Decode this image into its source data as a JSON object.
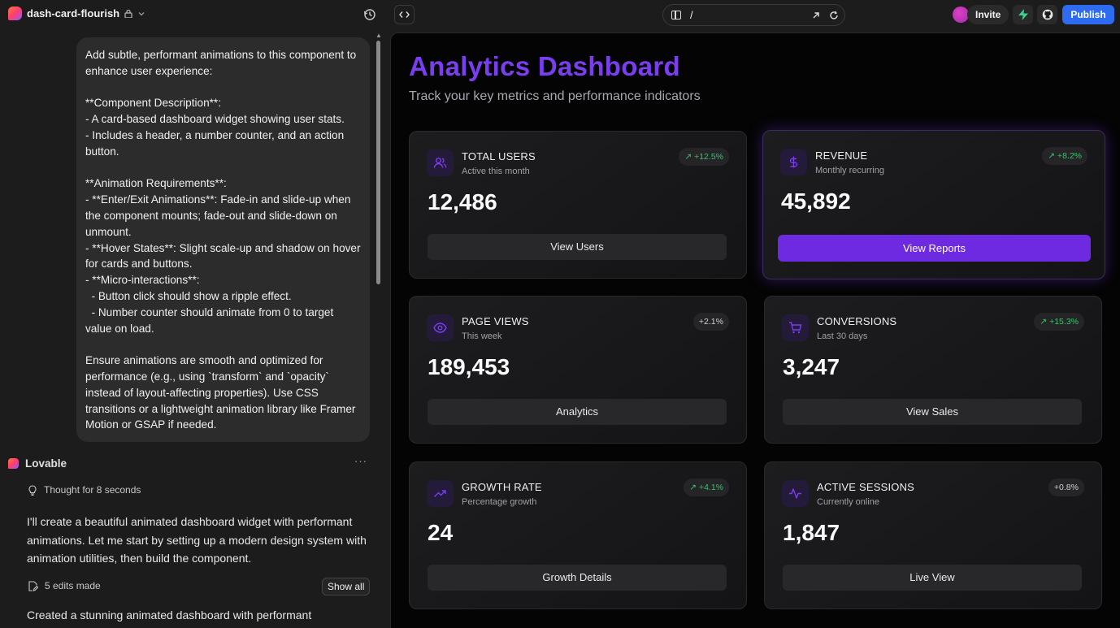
{
  "topbar": {
    "project_name": "dash-card-flourish",
    "url_path": "/",
    "invite_label": "Invite",
    "publish_label": "Publish"
  },
  "chat": {
    "user_message": "Add subtle, performant animations to this component to enhance user experience:\n\n**Component Description**:\n- A card-based dashboard widget showing user stats.\n- Includes a header, a number counter, and an action button.\n\n**Animation Requirements**:\n- **Enter/Exit Animations**: Fade-in and slide-up when the component mounts; fade-out and slide-down on unmount.\n- **Hover States**: Slight scale-up and shadow on hover for cards and buttons.\n- **Micro-interactions**:\n  - Button click should show a ripple effect.\n  - Number counter should animate from 0 to target value on load.\n\nEnsure animations are smooth and optimized for performance (e.g., using `transform` and `opacity` instead of layout-affecting properties). Use CSS transitions or a lightweight animation library like Framer Motion or GSAP if needed.",
    "assistant_name": "Lovable",
    "more_label": "···",
    "thought_text": "Thought for 8 seconds",
    "reply_text": "I'll create a beautiful animated dashboard widget with performant animations. Let me start by setting up a modern design system with animation utilities, then build the component.",
    "edits_text": "5 edits made",
    "show_all_label": "Show all",
    "created_text": "Created a stunning animated dashboard with performant"
  },
  "dashboard": {
    "title": "Analytics Dashboard",
    "subtitle": "Track your key metrics and performance indicators",
    "cards": [
      {
        "label": "TOTAL USERS",
        "desc": "Active this month",
        "badge": "↗ +12.5%",
        "value": "12,486",
        "button": "View Users",
        "icon": "users-icon"
      },
      {
        "label": "REVENUE",
        "desc": "Monthly recurring",
        "badge": "↗ +8.2%",
        "value": "45,892",
        "button": "View Reports",
        "icon": "dollar-icon"
      },
      {
        "label": "PAGE VIEWS",
        "desc": "This week",
        "badge": "+2.1%",
        "value": "189,453",
        "button": "Analytics",
        "icon": "eye-icon"
      },
      {
        "label": "CONVERSIONS",
        "desc": "Last 30 days",
        "badge": "↗ +15.3%",
        "value": "3,247",
        "button": "View Sales",
        "icon": "cart-icon"
      },
      {
        "label": "GROWTH RATE",
        "desc": "Percentage growth",
        "badge": "↗ +4.1%",
        "value": "24",
        "button": "Growth Details",
        "icon": "trending-up-icon"
      },
      {
        "label": "ACTIVE SESSIONS",
        "desc": "Currently online",
        "badge": "+0.8%",
        "value": "1,847",
        "button": "Live View",
        "icon": "activity-icon"
      }
    ]
  },
  "colors": {
    "accent": "#7a3df0",
    "primary_button": "#6d2ae0",
    "publish": "#2d6cf0",
    "positive": "#38c26a"
  }
}
